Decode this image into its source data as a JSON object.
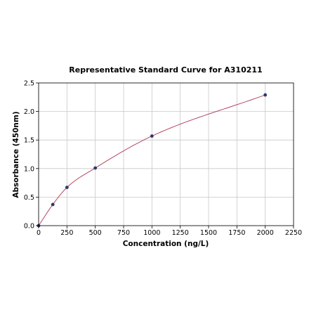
{
  "chart_data": {
    "type": "scatter",
    "title": "Representative Standard Curve for A310211",
    "xlabel": "Concentration (ng/L)",
    "ylabel": "Absorbance (450nm)",
    "xlim": [
      0,
      2250
    ],
    "ylim": [
      0,
      2.5
    ],
    "xticks": [
      0,
      250,
      500,
      750,
      1000,
      1250,
      1500,
      1750,
      2000,
      2250
    ],
    "yticks": [
      0.0,
      0.5,
      1.0,
      1.5,
      2.0,
      2.5
    ],
    "xtick_labels": [
      "0",
      "250",
      "500",
      "750",
      "1000",
      "1250",
      "1500",
      "1750",
      "2000",
      "2250"
    ],
    "ytick_labels": [
      "0.0",
      "0.5",
      "1.0",
      "1.5",
      "2.0",
      "2.5"
    ],
    "grid": true,
    "series": [
      {
        "points": [
          {
            "x": 0,
            "y": 0.0
          },
          {
            "x": 125,
            "y": 0.37
          },
          {
            "x": 250,
            "y": 0.67
          },
          {
            "x": 500,
            "y": 1.01
          },
          {
            "x": 1000,
            "y": 1.57
          },
          {
            "x": 2000,
            "y": 2.29
          }
        ],
        "marker_color": "#2d3a6b",
        "fit_curve_color": "#b5485f"
      }
    ]
  }
}
